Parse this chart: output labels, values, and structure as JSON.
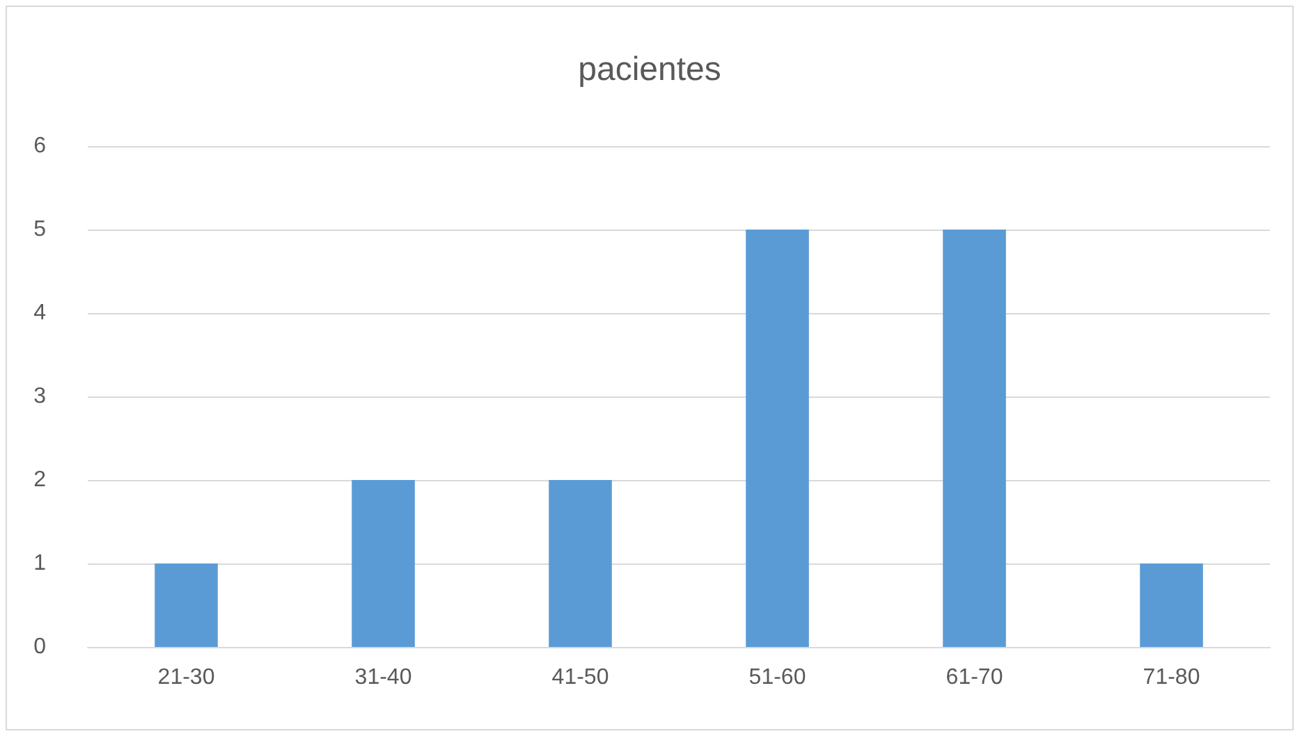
{
  "chart_data": {
    "type": "bar",
    "title": "pacientes",
    "categories": [
      "21-30",
      "31-40",
      "41-50",
      "51-60",
      "61-70",
      "71-80"
    ],
    "values": [
      1,
      2,
      2,
      5,
      5,
      1
    ],
    "color": "#5b9bd5",
    "ylim": [
      0,
      6
    ],
    "yticks": [
      0,
      1,
      2,
      3,
      4,
      5,
      6
    ],
    "grid": "y"
  }
}
